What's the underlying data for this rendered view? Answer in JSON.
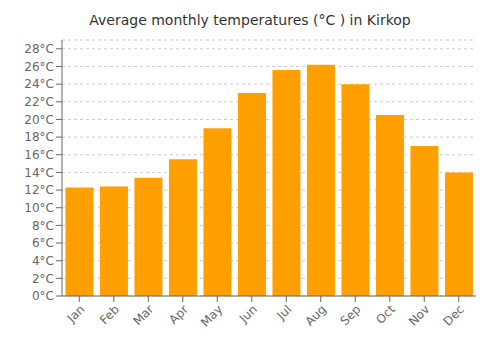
{
  "chart_data": {
    "type": "bar",
    "title": "Average monthly temperatures (°C ) in Kirkop",
    "categories": [
      "Jan",
      "Feb",
      "Mar",
      "Apr",
      "May",
      "Jun",
      "Jul",
      "Aug",
      "Sep",
      "Oct",
      "Nov",
      "Dec"
    ],
    "values": [
      12.3,
      12.4,
      13.4,
      15.5,
      19.0,
      23.0,
      25.6,
      26.2,
      24.0,
      20.5,
      17.0,
      14.0
    ],
    "color": "#FFA000",
    "ylim": [
      0,
      29
    ],
    "yticks": [
      {
        "value": 0,
        "label": "0°C"
      },
      {
        "value": 2,
        "label": "2°C"
      },
      {
        "value": 4,
        "label": "4°C"
      },
      {
        "value": 6,
        "label": "6°C"
      },
      {
        "value": 8,
        "label": "8°C"
      },
      {
        "value": 10,
        "label": "10°C"
      },
      {
        "value": 12,
        "label": "12°C"
      },
      {
        "value": 14,
        "label": "14°C"
      },
      {
        "value": 16,
        "label": "16°C"
      },
      {
        "value": 18,
        "label": "18°C"
      },
      {
        "value": 20,
        "label": "20°C"
      },
      {
        "value": 22,
        "label": "22°C"
      },
      {
        "value": 24,
        "label": "24°C"
      },
      {
        "value": 26,
        "label": "26°C"
      },
      {
        "value": 28,
        "label": "28°C"
      }
    ],
    "grid": true
  }
}
